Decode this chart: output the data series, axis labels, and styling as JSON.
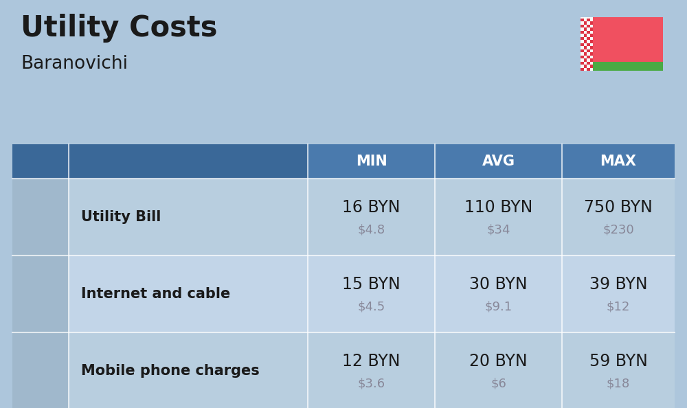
{
  "title": "Utility Costs",
  "subtitle": "Baranovichi",
  "background_color": "#adc6dc",
  "header_color": "#4a7aad",
  "header_text_color": "#ffffff",
  "row_color_even": "#b8cedf",
  "row_color_odd": "#c2d5e8",
  "icon_col_color": "#a0b8cc",
  "separator_color": "#ffffff",
  "columns": [
    "MIN",
    "AVG",
    "MAX"
  ],
  "rows": [
    {
      "label": "Utility Bill",
      "values_byn": [
        "16 BYN",
        "110 BYN",
        "750 BYN"
      ],
      "values_usd": [
        "$4.8",
        "$34",
        "$230"
      ]
    },
    {
      "label": "Internet and cable",
      "values_byn": [
        "15 BYN",
        "30 BYN",
        "39 BYN"
      ],
      "values_usd": [
        "$4.5",
        "$9.1",
        "$12"
      ]
    },
    {
      "label": "Mobile phone charges",
      "values_byn": [
        "12 BYN",
        "20 BYN",
        "59 BYN"
      ],
      "values_usd": [
        "$3.6",
        "$6",
        "$18"
      ]
    }
  ],
  "title_fontsize": 30,
  "subtitle_fontsize": 19,
  "header_fontsize": 15,
  "label_fontsize": 15,
  "value_byn_fontsize": 17,
  "value_usd_fontsize": 13,
  "text_color": "#1a1a1a",
  "usd_color": "#888899",
  "flag_red": "#f05060",
  "flag_green": "#4aaa44",
  "flag_white": "#f8f8f8"
}
